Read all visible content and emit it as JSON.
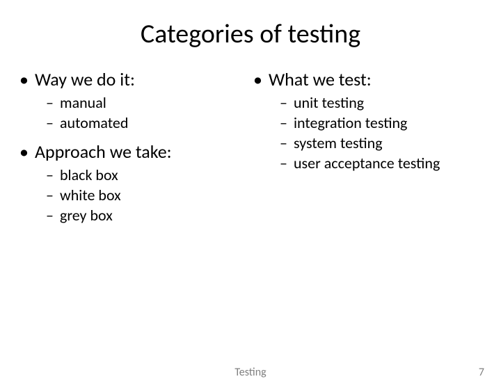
{
  "title": "Categories of testing",
  "left": {
    "section1": {
      "heading": "Way we do it:",
      "items": [
        "manual",
        "automated"
      ]
    },
    "section2": {
      "heading": "Approach we take:",
      "items": [
        "black box",
        "white box",
        "grey box"
      ]
    }
  },
  "right": {
    "section1": {
      "heading": "What we test:",
      "items": [
        "unit testing",
        "integration testing",
        "system testing",
        "user acceptance testing"
      ]
    }
  },
  "footer": {
    "center": "Testing",
    "page": "7"
  },
  "style": {
    "background_color": "#ffffff",
    "text_color": "#000000",
    "footer_color": "#7f7f7f",
    "title_fontsize": 38,
    "l1_fontsize": 26,
    "l2_fontsize": 22,
    "footer_fontsize": 16,
    "bullet_char": "•",
    "dash_char": "–"
  }
}
